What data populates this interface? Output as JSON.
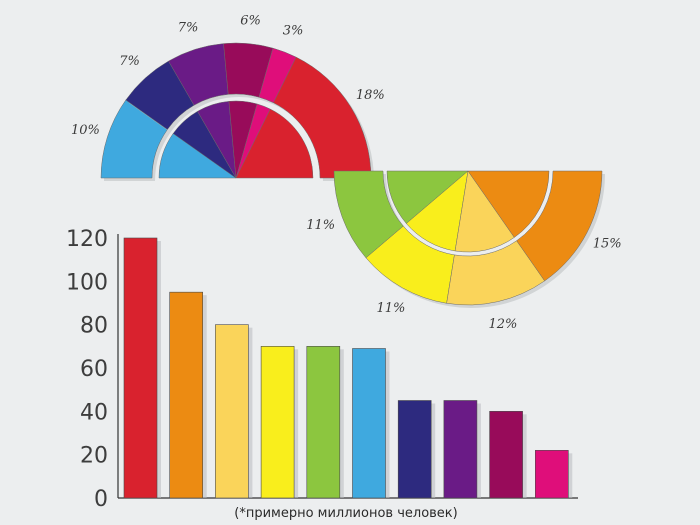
{
  "chart_data": [
    {
      "type": "bar",
      "categories": [
        "",
        "",
        "",
        "",
        "",
        "",
        "",
        "",
        "",
        ""
      ],
      "values": [
        120,
        95,
        80,
        70,
        70,
        69,
        45,
        45,
        40,
        22
      ],
      "colors": [
        "#d9222e",
        "#ec8b12",
        "#fad45a",
        "#f9ee1c",
        "#8cc63f",
        "#3fa9df",
        "#2d2a7f",
        "#6a1b86",
        "#980b5a",
        "#df0e7a"
      ],
      "ylim": [
        0,
        120
      ],
      "yticks": [
        0,
        20,
        40,
        60,
        80,
        100,
        120
      ],
      "xlabel": "(*примерно миллионов человек)",
      "grid": false
    },
    {
      "type": "pie",
      "style": "semicircle arc with inner fan",
      "labels": [
        "10%",
        "7%",
        "7%",
        "6%",
        "3%",
        "18%"
      ],
      "values": [
        10,
        7,
        7,
        6,
        3,
        18
      ],
      "colors": [
        "#3fa9df",
        "#2d2a7f",
        "#6a1b86",
        "#980b5a",
        "#df0e7a",
        "#d9222e"
      ]
    },
    {
      "type": "pie",
      "style": "semicircle arc with inner fan",
      "labels": [
        "11%",
        "11%",
        "12%",
        "15%"
      ],
      "values": [
        11,
        11,
        12,
        15
      ],
      "colors": [
        "#8cc63f",
        "#f9ee1c",
        "#fad45a",
        "#ec8b12"
      ]
    }
  ]
}
